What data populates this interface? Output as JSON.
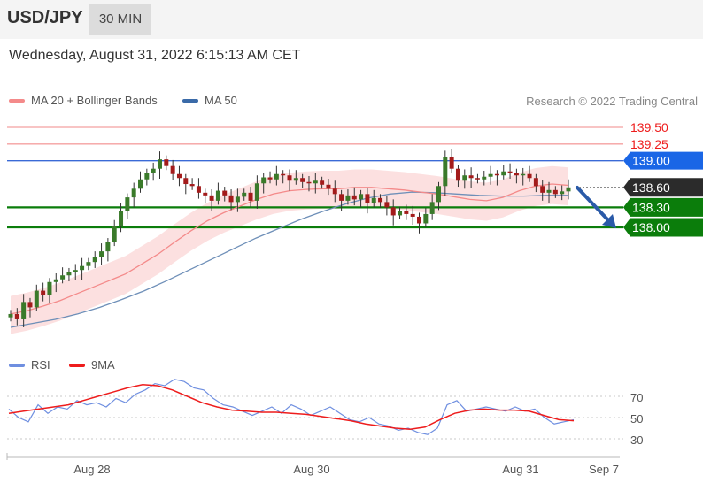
{
  "header": {
    "symbol": "USD/JPY",
    "interval": "30 MIN"
  },
  "datetime": "Wednesday, August 31, 2022 6:15:13 AM CET",
  "legend": {
    "items": [
      {
        "label": "MA 20 + Bollinger Bands",
        "color": "#f48a8a"
      },
      {
        "label": "MA 50",
        "color": "#3a6aa8"
      }
    ],
    "copyright": "Research © 2022 Trading Central"
  },
  "rsi_legend": {
    "items": [
      {
        "label": "RSI",
        "color": "#6f8fe0"
      },
      {
        "label": "9MA",
        "color": "#ee1c1c"
      }
    ]
  },
  "chart_data": {
    "type": "candlestick",
    "grid": false,
    "price_range": [
      136.25,
      139.8
    ],
    "x_tick_labels": [
      "Aug 28",
      "Aug 30",
      "Aug 31",
      "Sep 7"
    ],
    "levels": [
      {
        "label": "139.50",
        "value": 139.5,
        "kind": "resistance",
        "color": "#ee1c1c"
      },
      {
        "label": "139.25",
        "value": 139.25,
        "kind": "resistance",
        "color": "#ee1c1c"
      },
      {
        "label": "139.00",
        "value": 139.0,
        "kind": "pivot",
        "color": "#1a66e6"
      },
      {
        "label": "138.60",
        "value": 138.6,
        "kind": "last",
        "color": "#2b2b2b"
      },
      {
        "label": "138.30",
        "value": 138.3,
        "kind": "support",
        "color": "#0b7d0b"
      },
      {
        "label": "138.00",
        "value": 138.0,
        "kind": "support",
        "color": "#0b7d0b"
      }
    ],
    "ohlc_close": [
      136.7,
      136.62,
      136.88,
      136.8,
      137.05,
      136.98,
      137.18,
      137.22,
      137.28,
      137.33,
      137.36,
      137.42,
      137.48,
      137.55,
      137.64,
      137.78,
      138.02,
      138.24,
      138.45,
      138.58,
      138.72,
      138.82,
      138.88,
      139.02,
      138.92,
      138.8,
      138.74,
      138.65,
      138.62,
      138.52,
      138.48,
      138.4,
      138.55,
      138.48,
      138.38,
      138.46,
      138.52,
      138.4,
      138.66,
      138.75,
      138.72,
      138.8,
      138.78,
      138.7,
      138.74,
      138.68,
      138.66,
      138.7,
      138.64,
      138.58,
      138.5,
      138.4,
      138.48,
      138.42,
      138.5,
      138.36,
      138.44,
      138.38,
      138.3,
      138.18,
      138.25,
      138.2,
      138.16,
      138.06,
      138.2,
      138.38,
      138.62,
      139.06,
      138.88,
      138.7,
      138.78,
      138.74,
      138.72,
      138.76,
      138.8,
      138.78,
      138.84,
      138.82,
      138.78,
      138.8,
      138.74,
      138.62,
      138.52,
      138.56,
      138.5,
      138.54,
      138.6
    ],
    "ma20": [
      136.7,
      136.75,
      136.82,
      136.9,
      137.0,
      137.1,
      137.2,
      137.3,
      137.45,
      137.6,
      137.78,
      137.95,
      138.1,
      138.22,
      138.32,
      138.42,
      138.5,
      138.55,
      138.57,
      138.58,
      138.58,
      138.6,
      138.6,
      138.58,
      138.56,
      138.53,
      138.5,
      138.46,
      138.42,
      138.4,
      138.45,
      138.55,
      138.62,
      138.65,
      138.63
    ],
    "ma50": [
      136.5,
      136.56,
      136.62,
      136.7,
      136.8,
      136.92,
      137.05,
      137.2,
      137.36,
      137.52,
      137.68,
      137.84,
      137.98,
      138.12,
      138.24,
      138.35,
      138.44,
      138.5,
      138.53,
      138.52,
      138.5,
      138.48,
      138.47,
      138.47,
      138.48,
      138.48
    ],
    "rsi": {
      "series": [
        {
          "name": "RSI",
          "values": [
            58,
            50,
            46,
            62,
            54,
            60,
            58,
            66,
            62,
            64,
            60,
            68,
            64,
            72,
            76,
            82,
            80,
            86,
            84,
            78,
            76,
            68,
            62,
            60,
            56,
            52,
            56,
            60,
            54,
            62,
            58,
            52,
            56,
            60,
            54,
            48,
            46,
            50,
            44,
            42,
            38,
            40,
            36,
            34,
            40,
            62,
            66,
            56,
            58,
            60,
            58,
            56,
            60,
            56,
            58,
            50,
            44,
            46,
            48
          ]
        },
        {
          "name": "9MA",
          "values": [
            54,
            56,
            58,
            60,
            62,
            66,
            70,
            74,
            78,
            81,
            80,
            76,
            70,
            64,
            60,
            57,
            56,
            55,
            55,
            54,
            53,
            51,
            49,
            47,
            44,
            42,
            40,
            39,
            41,
            48,
            54,
            57,
            58,
            57,
            57,
            56,
            52,
            48,
            47
          ]
        }
      ],
      "ticks": [
        70,
        50,
        30
      ],
      "range": [
        20,
        90
      ]
    }
  }
}
